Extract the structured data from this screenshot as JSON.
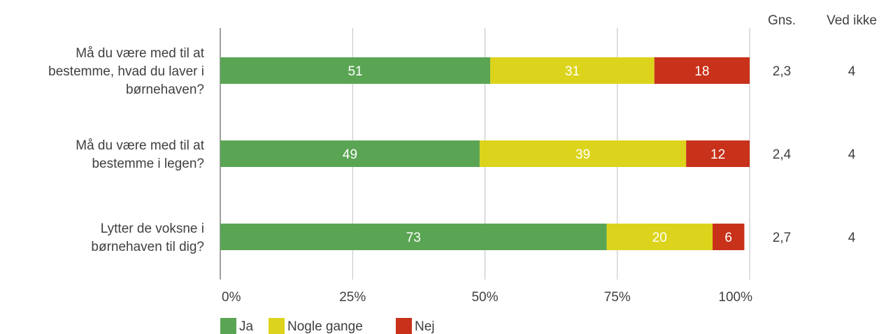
{
  "chart_data": {
    "type": "bar",
    "orientation": "horizontal",
    "stacked": true,
    "title": "",
    "xlabel": "",
    "ylabel": "",
    "xlim": [
      0,
      100
    ],
    "x_ticks": [
      "0%",
      "25%",
      "50%",
      "75%",
      "100%"
    ],
    "x_tick_values": [
      0,
      25,
      50,
      75,
      100
    ],
    "grid": true,
    "legend_position": "bottom-left",
    "categories": [
      "Må du være med til at bestemme, hvad du laver i børnehaven?",
      "Må du være med til at bestemme i legen?",
      "Lytter de voksne i børnehaven til dig?"
    ],
    "category_lines": [
      [
        "Må du være med til at",
        "bestemme, hvad du laver i",
        "børnehaven?"
      ],
      [
        "Må du være med til at",
        "bestemme i legen?"
      ],
      [
        "Lytter de voksne i",
        "børnehaven til dig?"
      ]
    ],
    "series": [
      {
        "name": "Ja",
        "color": "#5aa554",
        "values": [
          51,
          49,
          73
        ]
      },
      {
        "name": "Nogle gange",
        "color": "#dcd41c",
        "values": [
          31,
          39,
          20
        ]
      },
      {
        "name": "Nej",
        "color": "#c8311a",
        "values": [
          18,
          12,
          6
        ]
      }
    ],
    "side_columns": [
      {
        "header": "Gns.",
        "values": [
          "2,3",
          "2,4",
          "2,7"
        ]
      },
      {
        "header": "Ved ikke",
        "values": [
          "4",
          "4",
          "4"
        ]
      }
    ]
  }
}
